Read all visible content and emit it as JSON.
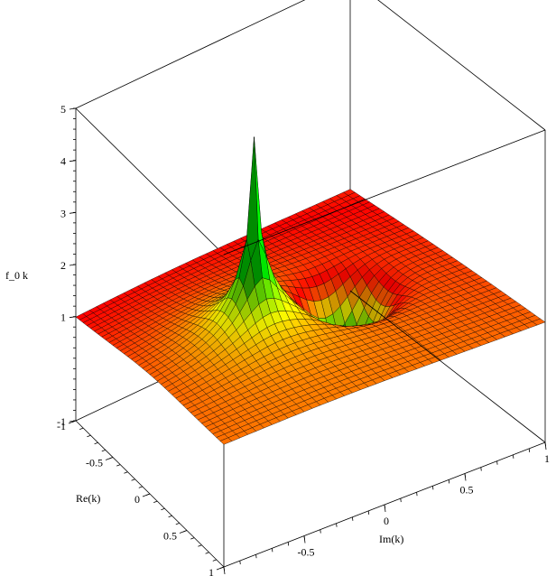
{
  "chart_data": {
    "type": "surface3d",
    "title": "",
    "xlabel": "Im(k)",
    "ylabel": "Re(k)",
    "zlabel": "f_0 k",
    "xlim": [
      -1,
      1
    ],
    "ylim": [
      -1,
      1
    ],
    "zlim": [
      -1,
      5
    ],
    "x_ticks": [
      "-1",
      "-0.5",
      "0",
      "0.5",
      "1"
    ],
    "y_ticks": [
      "-1",
      "-0.5",
      "0",
      "0.5",
      "1"
    ],
    "z_ticks": [
      "-1",
      "1",
      "2",
      "3",
      "4",
      "5"
    ],
    "z_tick_values": [
      -1,
      1,
      2,
      3,
      4,
      5
    ],
    "grid": false,
    "colormap": [
      "#ff0000",
      "#ffff00",
      "#00ff00"
    ],
    "features": [
      {
        "type": "peak",
        "im": -0.3,
        "re": 0.0,
        "max_z": 5
      },
      {
        "type": "well",
        "im": 0.3,
        "re": 0.0,
        "min_z": -0.5
      }
    ],
    "baseline_z": 1
  }
}
